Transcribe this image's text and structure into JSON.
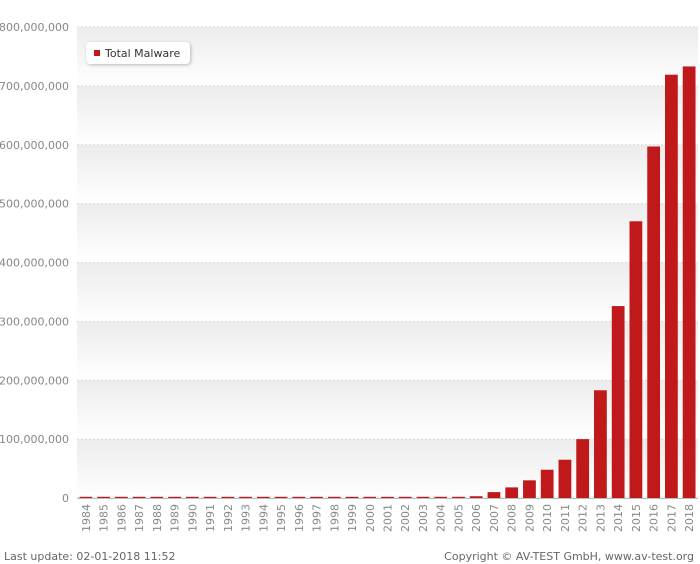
{
  "chart_data": {
    "type": "bar",
    "title": "",
    "xlabel": "",
    "ylabel": "",
    "ylim": [
      0,
      800000000
    ],
    "yticks": [
      0,
      100000000,
      200000000,
      300000000,
      400000000,
      500000000,
      600000000,
      700000000,
      800000000
    ],
    "ytick_labels": [
      "0",
      "100,000,000",
      "200,000,000",
      "300,000,000",
      "400,000,000",
      "500,000,000",
      "600,000,000",
      "700,000,000",
      "800,000,000"
    ],
    "grid": true,
    "legend_position": "top-left",
    "categories": [
      "1984",
      "1985",
      "1986",
      "1987",
      "1988",
      "1989",
      "1990",
      "1991",
      "1992",
      "1993",
      "1994",
      "1995",
      "1996",
      "1997",
      "1998",
      "1999",
      "2000",
      "2001",
      "2002",
      "2003",
      "2004",
      "2005",
      "2006",
      "2007",
      "2008",
      "2009",
      "2010",
      "2011",
      "2012",
      "2013",
      "2014",
      "2015",
      "2016",
      "2017",
      "2018"
    ],
    "series": [
      {
        "name": "Total Malware",
        "color": "#c0191c",
        "values": [
          0,
          0,
          0,
          0,
          0,
          0,
          0,
          0,
          0,
          0,
          0,
          0,
          0,
          0,
          1000000,
          1000000,
          1000000,
          1200000,
          1500000,
          1500000,
          1500000,
          2000000,
          3000000,
          10000000,
          18000000,
          30000000,
          48000000,
          65000000,
          100000000,
          183000000,
          326000000,
          470000000,
          597000000,
          719000000,
          733000000
        ]
      }
    ]
  },
  "legend": {
    "label": "Total Malware"
  },
  "footer": {
    "last_update": "Last update: 02-01-2018 11:52",
    "copyright": "Copyright © AV-TEST GmbH, www.av-test.org"
  }
}
